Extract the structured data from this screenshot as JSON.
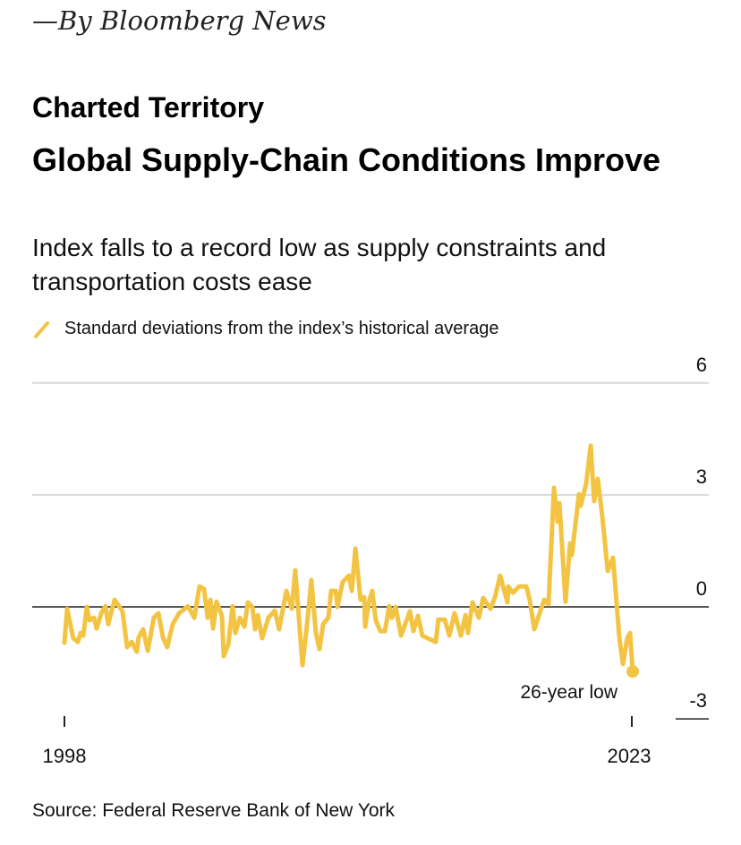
{
  "byline": "—By Bloomberg News",
  "kicker": "Charted Territory",
  "title": "Global Supply-Chain Conditions Improve",
  "subtitle": "Index falls to a record low as supply constraints and transportation costs ease",
  "source": "Source: Federal Reserve Bank of New York",
  "chart_data": {
    "type": "line",
    "title": "Global Supply-Chain Conditions Improve",
    "legend": [
      "Standard deviations from the index’s historical average"
    ],
    "legend_placement": "top-left",
    "series": [
      {
        "name": "Standard deviations from the index’s historical average",
        "color": "#F3C443",
        "points": [
          [
            1998.0,
            -0.96
          ],
          [
            1998.12,
            -0.05
          ],
          [
            1998.39,
            -0.84
          ],
          [
            1998.59,
            -0.94
          ],
          [
            1998.71,
            -0.7
          ],
          [
            1998.83,
            -0.77
          ],
          [
            1998.99,
            0.0
          ],
          [
            1999.1,
            -0.36
          ],
          [
            1999.3,
            -0.29
          ],
          [
            1999.42,
            -0.58
          ],
          [
            1999.62,
            -0.17
          ],
          [
            1999.81,
            0.02
          ],
          [
            1999.93,
            -0.46
          ],
          [
            2000.21,
            0.19
          ],
          [
            2000.56,
            -0.12
          ],
          [
            2000.76,
            -1.08
          ],
          [
            2000.96,
            -0.94
          ],
          [
            2001.08,
            -1.08
          ],
          [
            2001.19,
            -1.2
          ],
          [
            2001.27,
            -0.82
          ],
          [
            2001.47,
            -0.6
          ],
          [
            2001.67,
            -1.18
          ],
          [
            2001.94,
            -0.29
          ],
          [
            2002.14,
            -0.17
          ],
          [
            2002.34,
            -0.82
          ],
          [
            2002.53,
            -1.08
          ],
          [
            2002.77,
            -0.46
          ],
          [
            2003.05,
            -0.17
          ],
          [
            2003.44,
            0.02
          ],
          [
            2003.72,
            -0.29
          ],
          [
            2003.95,
            0.55
          ],
          [
            2004.15,
            0.48
          ],
          [
            2004.31,
            -0.29
          ],
          [
            2004.43,
            0.19
          ],
          [
            2004.55,
            -0.58
          ],
          [
            2004.7,
            0.14
          ],
          [
            2004.94,
            -0.24
          ],
          [
            2005.02,
            -1.32
          ],
          [
            2005.22,
            -1.01
          ],
          [
            2005.41,
            0.02
          ],
          [
            2005.53,
            -0.7
          ],
          [
            2005.73,
            -0.29
          ],
          [
            2005.93,
            -0.53
          ],
          [
            2006.08,
            0.12
          ],
          [
            2006.28,
            0.0
          ],
          [
            2006.4,
            -0.6
          ],
          [
            2006.52,
            -0.22
          ],
          [
            2006.71,
            -0.84
          ],
          [
            2006.99,
            -0.29
          ],
          [
            2007.27,
            -0.1
          ],
          [
            2007.46,
            -0.6
          ],
          [
            2007.78,
            0.43
          ],
          [
            2008.02,
            -0.05
          ],
          [
            2008.17,
            0.98
          ],
          [
            2008.29,
            0.02
          ],
          [
            2008.49,
            -1.56
          ],
          [
            2008.69,
            -0.46
          ],
          [
            2008.88,
            0.72
          ],
          [
            2009.08,
            -0.7
          ],
          [
            2009.24,
            -1.13
          ],
          [
            2009.4,
            -0.46
          ],
          [
            2009.63,
            -0.29
          ],
          [
            2009.75,
            0.43
          ],
          [
            2009.95,
            0.43
          ],
          [
            2010.03,
            0.0
          ],
          [
            2010.26,
            0.67
          ],
          [
            2010.54,
            0.84
          ],
          [
            2010.66,
            0.43
          ],
          [
            2010.82,
            1.56
          ],
          [
            2011.05,
            0.19
          ],
          [
            2011.21,
            0.26
          ],
          [
            2011.25,
            -0.53
          ],
          [
            2011.41,
            0.12
          ],
          [
            2011.56,
            0.43
          ],
          [
            2011.72,
            -0.36
          ],
          [
            2011.92,
            -0.65
          ],
          [
            2012.12,
            -0.65
          ],
          [
            2012.31,
            0.02
          ],
          [
            2012.43,
            -0.29
          ],
          [
            2012.59,
            0.0
          ],
          [
            2012.83,
            -0.77
          ],
          [
            2013.22,
            -0.12
          ],
          [
            2013.38,
            -0.65
          ],
          [
            2013.58,
            -0.24
          ],
          [
            2013.77,
            -0.77
          ],
          [
            2014.36,
            -0.94
          ],
          [
            2014.48,
            -0.34
          ],
          [
            2014.76,
            -0.34
          ],
          [
            2014.96,
            -0.77
          ],
          [
            2015.19,
            -0.17
          ],
          [
            2015.47,
            -0.77
          ],
          [
            2015.67,
            -0.22
          ],
          [
            2015.78,
            -0.7
          ],
          [
            2015.98,
            0.12
          ],
          [
            2016.26,
            -0.29
          ],
          [
            2016.45,
            0.24
          ],
          [
            2016.77,
            -0.05
          ],
          [
            2016.97,
            0.26
          ],
          [
            2017.2,
            0.84
          ],
          [
            2017.52,
            0.12
          ],
          [
            2017.56,
            0.55
          ],
          [
            2017.76,
            0.38
          ],
          [
            2018.03,
            0.55
          ],
          [
            2018.35,
            0.55
          ],
          [
            2018.5,
            0.19
          ],
          [
            2018.7,
            -0.6
          ],
          [
            2018.94,
            -0.17
          ],
          [
            2019.14,
            0.19
          ],
          [
            2019.33,
            0.07
          ],
          [
            2019.57,
            3.19
          ],
          [
            2019.73,
            2.28
          ],
          [
            2019.81,
            2.78
          ],
          [
            2020.08,
            0.14
          ],
          [
            2020.28,
            1.7
          ],
          [
            2020.36,
            1.39
          ],
          [
            2020.67,
            3.02
          ],
          [
            2020.75,
            2.71
          ],
          [
            2020.99,
            3.31
          ],
          [
            2021.19,
            4.32
          ],
          [
            2021.34,
            2.83
          ],
          [
            2021.5,
            3.43
          ],
          [
            2021.7,
            2.42
          ],
          [
            2021.94,
            0.96
          ],
          [
            2022.17,
            1.32
          ],
          [
            2022.45,
            -0.84
          ],
          [
            2022.61,
            -1.53
          ],
          [
            2022.8,
            -0.84
          ],
          [
            2022.92,
            -0.7
          ],
          [
            2023.04,
            -1.73
          ]
        ]
      }
    ],
    "xlim": [
      1998,
      2023
    ],
    "ylim": [
      -3,
      6
    ],
    "x_ticks": [
      "1998",
      "2023"
    ],
    "y_ticks": [
      "6",
      "3",
      "0",
      "-3"
    ],
    "y_tick_values": [
      6,
      3,
      0,
      -3
    ],
    "x_tick_values": [
      1998,
      2023
    ],
    "grid": true,
    "annotations": [
      {
        "text": "26-year low",
        "x": 2023.04,
        "y": -1.73
      }
    ],
    "xlabel": "",
    "ylabel": ""
  }
}
